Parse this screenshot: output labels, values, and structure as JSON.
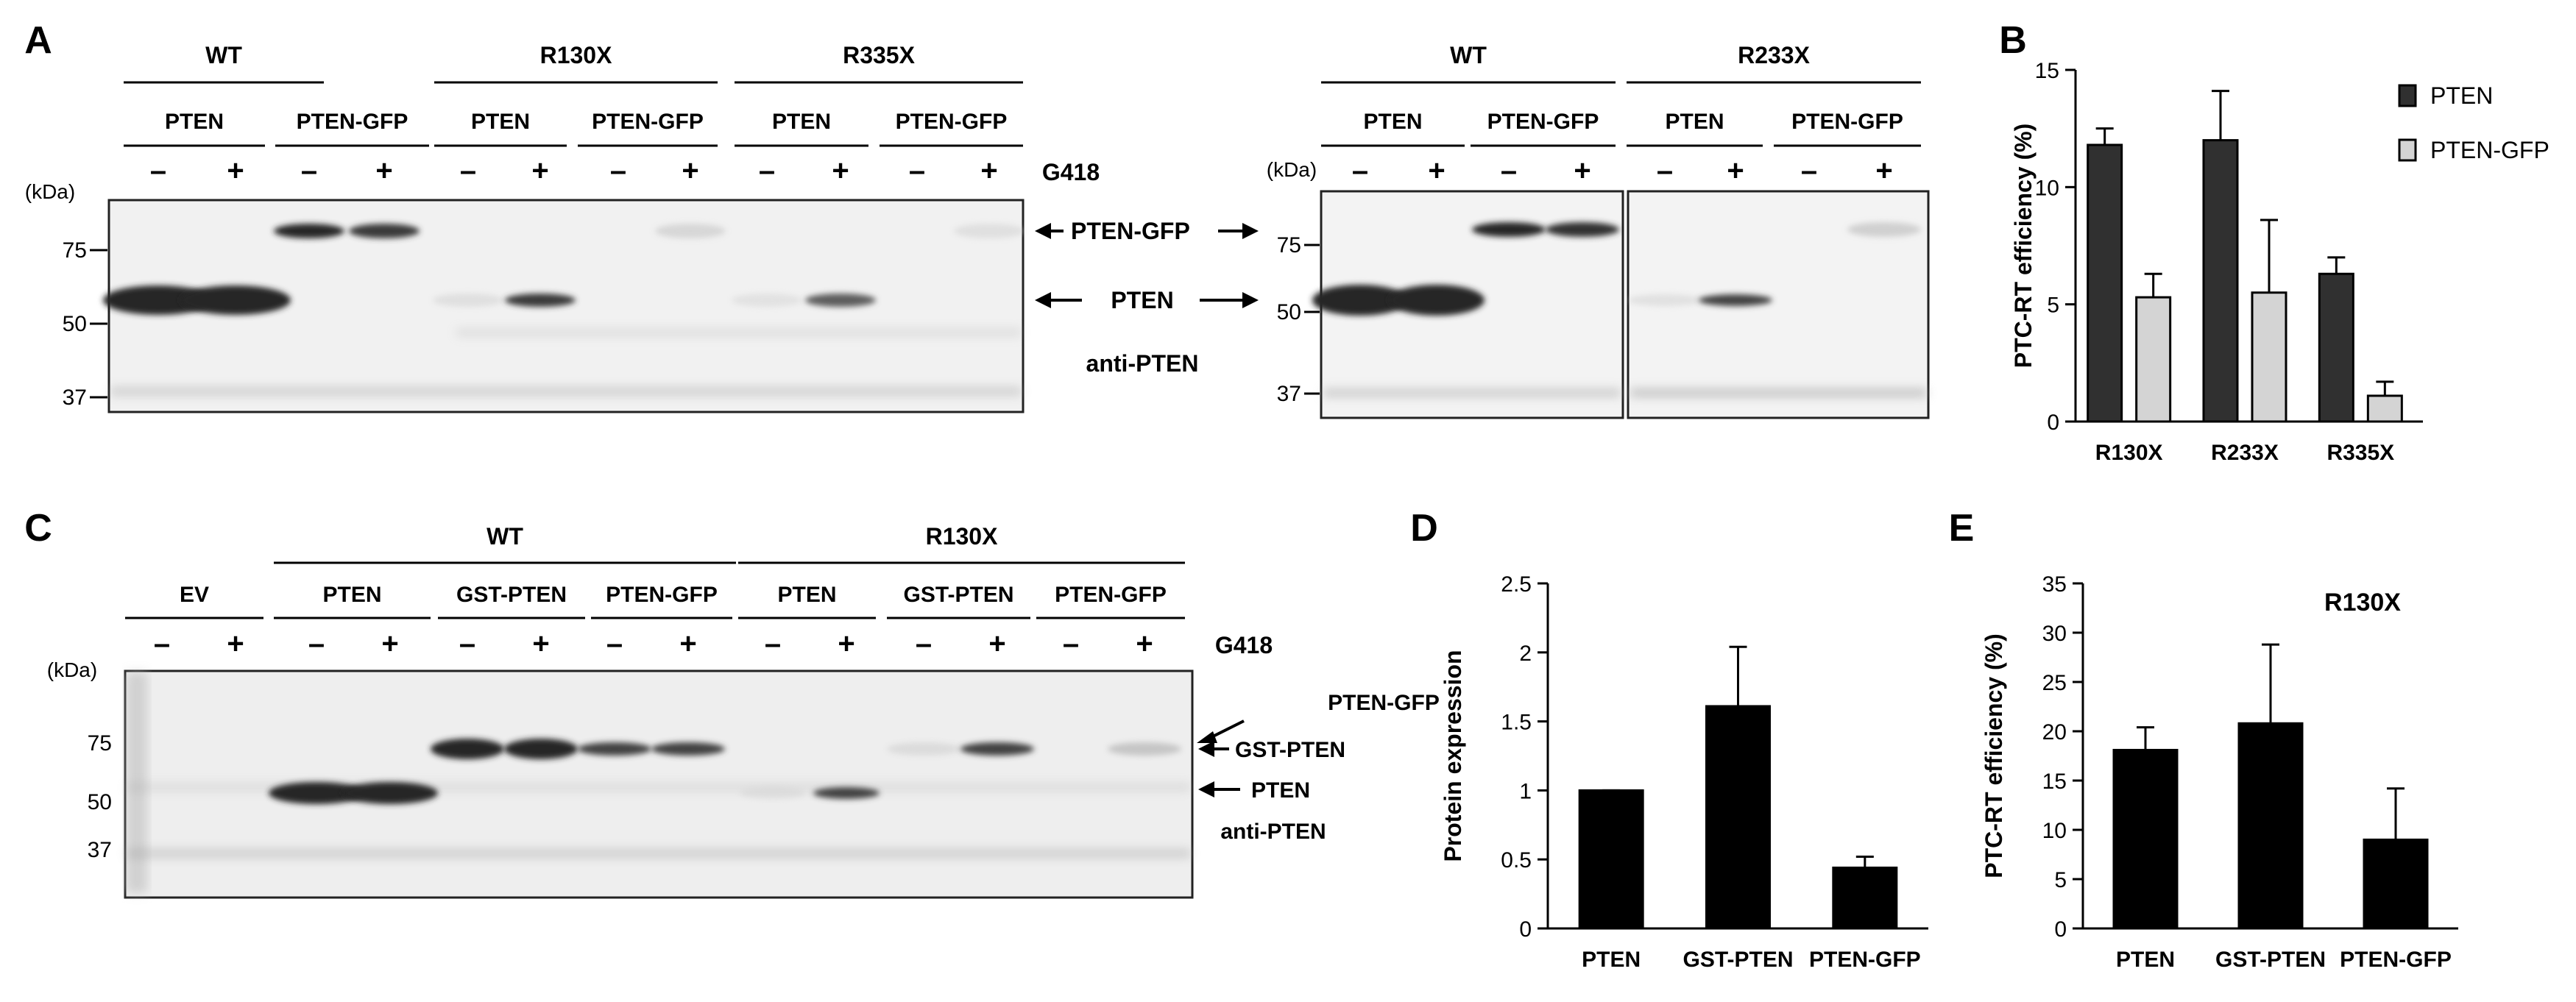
{
  "panels": {
    "A": {
      "letter": "A",
      "left_blot": {
        "groups": [
          "WT",
          "R130X",
          "R335X"
        ],
        "constructs": [
          "PTEN",
          "PTEN-GFP",
          "PTEN",
          "PTEN-GFP",
          "PTEN",
          "PTEN-GFP"
        ],
        "g418_signs": [
          "–",
          "+",
          "–",
          "+",
          "–",
          "+",
          "–",
          "+",
          "–",
          "+",
          "–",
          "+"
        ],
        "g418_label": "G418",
        "kda_label": "(kDa)",
        "markers": [
          "75",
          "50",
          "37"
        ],
        "band_labels": {
          "pten_gfp": "PTEN-GFP",
          "pten": "PTEN",
          "antibody": "anti-PTEN"
        },
        "band_intensity": {
          "pten_gfp": [
            0,
            0,
            1.0,
            0.9,
            0,
            0,
            0,
            0.15,
            0,
            0,
            0,
            0.08
          ],
          "pten": [
            1.0,
            1.0,
            0,
            0,
            0.08,
            0.9,
            0,
            0,
            0.06,
            0.7,
            0,
            0
          ]
        }
      },
      "right_blot": {
        "groups": [
          "WT",
          "R233X"
        ],
        "constructs": [
          "PTEN",
          "PTEN-GFP",
          "PTEN",
          "PTEN-GFP"
        ],
        "g418_signs": [
          "–",
          "+",
          "–",
          "+",
          "–",
          "+",
          "–",
          "+"
        ],
        "kda_label": "(kDa)",
        "markers": [
          "75",
          "50",
          "37"
        ],
        "band_intensity": {
          "pten_gfp": [
            0,
            0,
            1.0,
            0.95,
            0,
            0,
            0,
            0.2
          ],
          "pten": [
            1.0,
            1.0,
            0,
            0,
            0.08,
            0.85,
            0,
            0
          ]
        }
      }
    },
    "B": {
      "letter": "B"
    },
    "C": {
      "letter": "C",
      "groups": [
        "WT",
        "R130X"
      ],
      "constructs": [
        "EV",
        "PTEN",
        "GST-PTEN",
        "PTEN-GFP",
        "PTEN",
        "GST-PTEN",
        "PTEN-GFP"
      ],
      "g418_signs": [
        "–",
        "+",
        "–",
        "+",
        "–",
        "+",
        "–",
        "+",
        "–",
        "+",
        "–",
        "+",
        "–",
        "+"
      ],
      "g418_label": "G418",
      "kda_label": "(kDa)",
      "markers": [
        "75",
        "50",
        "37"
      ],
      "band_labels": {
        "pten_gfp": "PTEN-GFP",
        "gst_pten": "GST-PTEN",
        "pten": "PTEN",
        "antibody": "anti-PTEN"
      },
      "band_intensity": {
        "upper": [
          0,
          0,
          0,
          0,
          1.0,
          1.0,
          0.85,
          0.85,
          0,
          0,
          0.1,
          0.85,
          0,
          0.25
        ],
        "pten": [
          0,
          0,
          1.0,
          1.0,
          0,
          0,
          0,
          0,
          0.06,
          0.85,
          0,
          0,
          0,
          0
        ]
      }
    },
    "D": {
      "letter": "D"
    },
    "E": {
      "letter": "E"
    }
  },
  "chart_data": [
    {
      "panel": "B",
      "type": "bar",
      "categories": [
        "R130X",
        "R233X",
        "R335X"
      ],
      "series": [
        {
          "name": "PTEN",
          "values": [
            11.8,
            12.0,
            6.3
          ],
          "errors": [
            0.7,
            2.1,
            0.7
          ],
          "color": "#303030"
        },
        {
          "name": "PTEN-GFP",
          "values": [
            5.3,
            5.5,
            1.1
          ],
          "errors": [
            1.0,
            3.1,
            0.6
          ],
          "color": "#d4d4d4"
        }
      ],
      "ylabel": "PTC-RT efficiency (%)",
      "ylim": [
        0,
        15
      ],
      "yticks": [
        "0",
        "5",
        "10",
        "15"
      ],
      "legend": "top-right",
      "grid": false
    },
    {
      "panel": "D",
      "type": "bar",
      "categories": [
        "PTEN",
        "GST-PTEN",
        "PTEN-GFP"
      ],
      "values": [
        1.0,
        1.61,
        0.44
      ],
      "errors": [
        0.0,
        0.43,
        0.08
      ],
      "ylabel": "Protein expression",
      "ylim": [
        0,
        2.5
      ],
      "yticks": [
        "0",
        "0.5",
        "1",
        "1.5",
        "2",
        "2.5"
      ],
      "color": "#000000",
      "grid": false
    },
    {
      "panel": "E",
      "type": "bar",
      "categories": [
        "PTEN",
        "GST-PTEN",
        "PTEN-GFP"
      ],
      "values": [
        18.1,
        20.8,
        9.0
      ],
      "errors": [
        2.3,
        8.0,
        5.2
      ],
      "title": "R130X",
      "ylabel": "PTC-RT efficiency (%)",
      "ylim": [
        0,
        35
      ],
      "yticks": [
        "0",
        "5",
        "10",
        "15",
        "20",
        "25",
        "30",
        "35"
      ],
      "color": "#000000",
      "grid": false
    }
  ]
}
